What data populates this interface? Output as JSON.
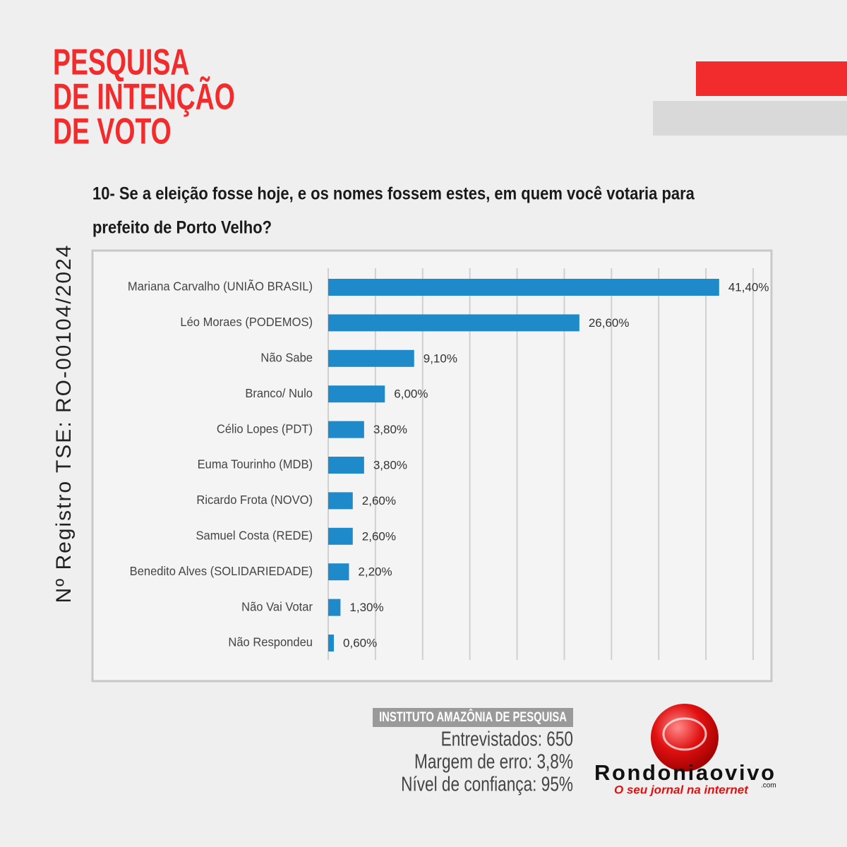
{
  "header": {
    "title_lines": [
      "PESQUISA",
      "DE INTENÇÃO",
      "DE VOTO"
    ]
  },
  "registry": "Nº Registro TSE: RO-00104/2024",
  "question_lines": [
    "10- Se a eleição fosse hoje, e os nomes fossem estes, em quem você votaria para",
    "prefeito de Porto Velho?"
  ],
  "chart_data": {
    "type": "bar",
    "orientation": "horizontal",
    "color": "#1f8ac9",
    "grid": true,
    "categories": [
      "Mariana Carvalho (UNIÃO BRASIL)",
      "Léo Moraes (PODEMOS)",
      "Não Sabe",
      "Branco/ Nulo",
      "Célio Lopes (PDT)",
      "Euma Tourinho (MDB)",
      "Ricardo Frota (NOVO)",
      "Samuel Costa (REDE)",
      "Benedito Alves (SOLIDARIEDADE)",
      "Não Vai Votar",
      "Não Respondeu"
    ],
    "values": [
      41.4,
      26.6,
      9.1,
      6.0,
      3.8,
      3.8,
      2.6,
      2.6,
      2.2,
      1.3,
      0.6
    ],
    "value_labels": [
      "41,40%",
      "26,60%",
      "9,10%",
      "6,00%",
      "3,80%",
      "3,80%",
      "2,60%",
      "2,60%",
      "2,20%",
      "1,30%",
      "0,60%"
    ],
    "xlim": [
      0,
      45
    ],
    "xticks": [
      0,
      5,
      10,
      15,
      20,
      25,
      30,
      35,
      40,
      45
    ]
  },
  "institute": {
    "name": "INSTITUTO AMAZÔNIA DE PESQUISA",
    "lines": [
      "Entrevistados: 650",
      "Margem de erro: 3,8%",
      "Nível de confiança: 95%"
    ]
  },
  "logo": {
    "name": "Rondoniaovivo",
    "domain": ".com",
    "tagline": "O seu jornal na internet"
  }
}
